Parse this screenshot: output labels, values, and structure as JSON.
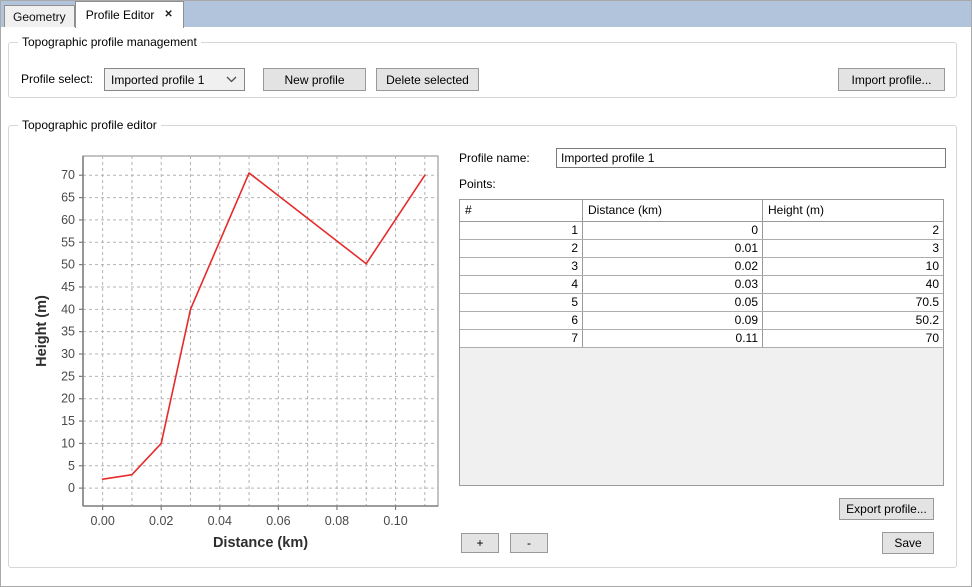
{
  "tabs": {
    "items": [
      {
        "label": "Geometry",
        "active": false
      },
      {
        "label": "Profile Editor",
        "active": true
      }
    ]
  },
  "icons": {
    "close": "✕"
  },
  "management": {
    "title": "Topographic profile management",
    "profile_select_label": "Profile select:",
    "profile_select_value": "Imported profile 1",
    "new_profile_button": "New profile",
    "delete_selected_button": "Delete selected",
    "import_profile_button": "Import profile..."
  },
  "editor": {
    "title": "Topographic profile editor",
    "profile_name_label": "Profile name:",
    "profile_name_value": "Imported profile 1",
    "points_label": "Points:",
    "table": {
      "columns": [
        "#",
        "Distance (km)",
        "Height (m)"
      ],
      "rows": [
        [
          "1",
          "0",
          "2"
        ],
        [
          "2",
          "0.01",
          "3"
        ],
        [
          "3",
          "0.02",
          "10"
        ],
        [
          "4",
          "0.03",
          "40"
        ],
        [
          "5",
          "0.05",
          "70.5"
        ],
        [
          "6",
          "0.09",
          "50.2"
        ],
        [
          "7",
          "0.11",
          "70"
        ]
      ]
    },
    "add_point_button": "+",
    "remove_point_button": "-",
    "export_profile_button": "Export profile...",
    "save_button": "Save"
  },
  "chart_data": {
    "type": "line",
    "xlabel": "Distance (km)",
    "ylabel": "Height (m)",
    "x": [
      0,
      0.01,
      0.02,
      0.03,
      0.05,
      0.09,
      0.11
    ],
    "y": [
      2,
      3,
      10,
      40,
      70.5,
      50.2,
      70
    ],
    "xlim": [
      -0.0067,
      0.1145
    ],
    "ylim": [
      -4,
      74.3
    ],
    "x_ticks": [
      0,
      0.02,
      0.04,
      0.06,
      0.08,
      0.1
    ],
    "x_tick_labels": [
      "0.00",
      "0.02",
      "0.04",
      "0.06",
      "0.08",
      "0.10"
    ],
    "y_ticks": [
      0,
      5,
      10,
      15,
      20,
      25,
      30,
      35,
      40,
      45,
      50,
      55,
      60,
      65,
      70
    ],
    "y_tick_labels": [
      "0",
      "5",
      "10",
      "15",
      "20",
      "25",
      "30",
      "35",
      "40",
      "45",
      "50",
      "55",
      "60",
      "65",
      "70"
    ],
    "x_gridlines": [
      0,
      0.01,
      0.02,
      0.03,
      0.04,
      0.05,
      0.06,
      0.07,
      0.08,
      0.09,
      0.1,
      0.11
    ],
    "y_gridlines": [
      0,
      5,
      10,
      15,
      20,
      25,
      30,
      35,
      40,
      45,
      50,
      55,
      60,
      65,
      70
    ],
    "grid": true,
    "legend_position": "none",
    "line_color": "#e62b2b"
  },
  "colors": {
    "tab_bar": "#b2c4dc",
    "chart_line": "#e62b2b",
    "chart_grid": "#b3b3b3",
    "chart_axis": "#8a8a8a",
    "chart_tick_text": "#4a4a4a",
    "table_empty_area": "#f0f0f0"
  }
}
